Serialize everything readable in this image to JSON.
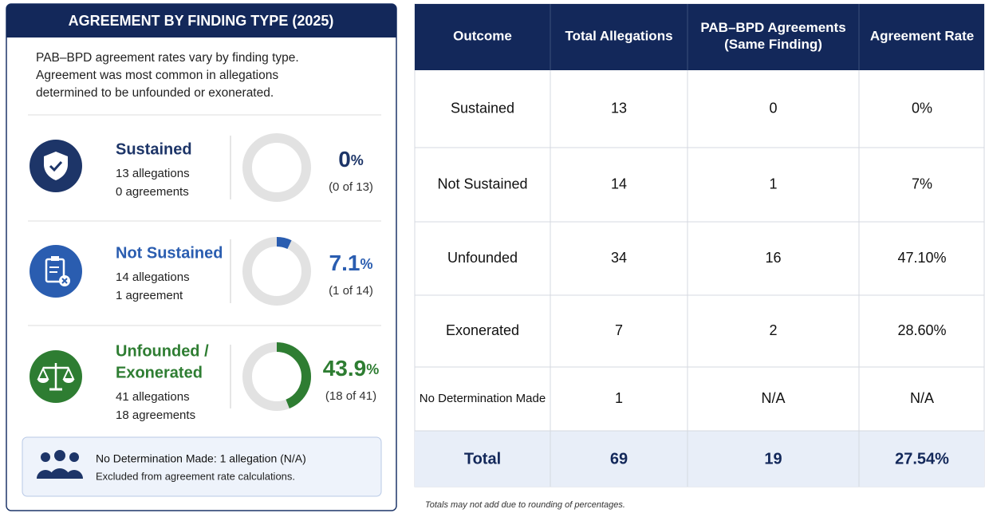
{
  "left": {
    "title": "AGREEMENT BY FINDING TYPE (2025)",
    "description": [
      "PAB–BPD agreement rates vary by finding type.",
      "Agreement was most common in allegations",
      "determined to be unfounded or exonerated."
    ],
    "cards": [
      {
        "title": [
          "Sustained"
        ],
        "allegations": "13 allegations",
        "agreements": "0 agreements",
        "rate": 0,
        "unit": "%",
        "detail": "(0 of 13)",
        "color": "#1d3568"
      },
      {
        "title": [
          "Not Sustained"
        ],
        "allegations": "14 allegations",
        "agreements": "1 agreement",
        "rate": 7.1,
        "unit": "%",
        "detail": "(1 of 14)",
        "color": "#2a5db0"
      },
      {
        "title": [
          "Unfounded /",
          "Exonerated"
        ],
        "allegations": "41 allegations",
        "agreements": "18 agreements",
        "rate": 43.9,
        "unit": "%",
        "detail": "(18 of 41)",
        "color": "#2e7d32"
      }
    ],
    "note": {
      "title": "No Determination Made: 1 allegation (N/A)",
      "text": "Excluded from agreement rate calculations."
    }
  },
  "table": {
    "columns": [
      [
        "Outcome"
      ],
      [
        "Total Allegations"
      ],
      [
        "PAB–BPD Agreements",
        "(Same Finding)"
      ],
      [
        "Agreement Rate"
      ]
    ],
    "rows": [
      [
        "Sustained",
        "13",
        "0",
        "0%"
      ],
      [
        "Not Sustained",
        "14",
        "1",
        "7%"
      ],
      [
        "Unfounded",
        "34",
        "16",
        "47.10%"
      ],
      [
        "Exonerated",
        "7",
        "2",
        "28.60%"
      ],
      [
        "No Determination Made",
        "1",
        "N/A",
        "N/A"
      ]
    ],
    "total": [
      "Total",
      "69",
      "19",
      "27.54%"
    ]
  },
  "footnote": "Totals may not add due to rounding of percentages."
}
